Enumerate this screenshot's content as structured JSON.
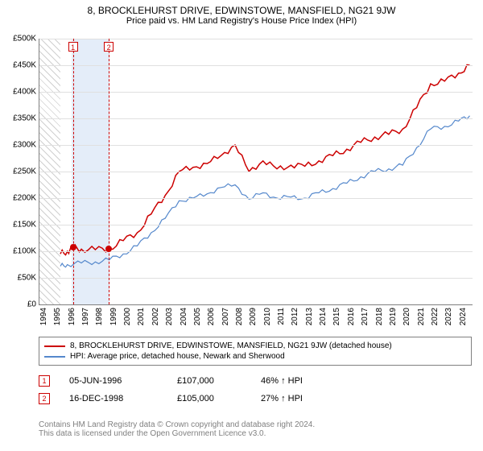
{
  "title": {
    "line1": "8, BROCKLEHURST DRIVE, EDWINSTOWE, MANSFIELD, NG21 9JW",
    "line2": "Price paid vs. HM Land Registry's House Price Index (HPI)",
    "fontsize_main": 12,
    "fontsize_sub": 11,
    "color": "#000000"
  },
  "chart": {
    "type": "line",
    "background_color": "#ffffff",
    "grid_color": "#e0e0e0",
    "axis_color": "#808080",
    "xlim": [
      1994,
      2025
    ],
    "ylim": [
      0,
      500000
    ],
    "ytick_step": 50000,
    "ytick_labels": [
      "£0",
      "£50K",
      "£100K",
      "£150K",
      "£200K",
      "£250K",
      "£300K",
      "£350K",
      "£400K",
      "£450K",
      "£500K"
    ],
    "xtick_labels": [
      "1994",
      "1995",
      "1996",
      "1997",
      "1998",
      "1999",
      "2000",
      "2001",
      "2002",
      "2003",
      "2004",
      "2005",
      "2006",
      "2007",
      "2008",
      "2009",
      "2010",
      "2011",
      "2012",
      "2013",
      "2014",
      "2015",
      "2016",
      "2017",
      "2018",
      "2019",
      "2020",
      "2021",
      "2022",
      "2023",
      "2024"
    ],
    "tick_fontsize": 10,
    "hatch": {
      "start": 1994,
      "end": 1995.5,
      "color": "#d0d0d0"
    },
    "highlight": {
      "start": 1996.3,
      "end": 1999.0,
      "color": "#dde8f7"
    },
    "series": [
      {
        "label": "8, BROCKLEHURST DRIVE, EDWINSTOWE, MANSFIELD, NG21 9JW (detached house)",
        "color": "#cc0000",
        "width": 1.5,
        "points": [
          [
            1995.5,
            95000
          ],
          [
            1996,
            100000
          ],
          [
            1996.4,
            107000
          ],
          [
            1997,
            104000
          ],
          [
            1998,
            103000
          ],
          [
            1999,
            105000
          ],
          [
            2000,
            120000
          ],
          [
            2001,
            135000
          ],
          [
            2002,
            170000
          ],
          [
            2003,
            205000
          ],
          [
            2004,
            250000
          ],
          [
            2005,
            258000
          ],
          [
            2006,
            265000
          ],
          [
            2007,
            280000
          ],
          [
            2008,
            300000
          ],
          [
            2009,
            250000
          ],
          [
            2010,
            270000
          ],
          [
            2011,
            255000
          ],
          [
            2012,
            262000
          ],
          [
            2013,
            260000
          ],
          [
            2014,
            270000
          ],
          [
            2015,
            280000
          ],
          [
            2016,
            292000
          ],
          [
            2017,
            305000
          ],
          [
            2018,
            315000
          ],
          [
            2019,
            320000
          ],
          [
            2020,
            330000
          ],
          [
            2021,
            370000
          ],
          [
            2022,
            415000
          ],
          [
            2023,
            420000
          ],
          [
            2024,
            435000
          ],
          [
            2024.8,
            450000
          ]
        ]
      },
      {
        "label": "HPI: Average price, detached house, Newark and Sherwood",
        "color": "#5588cc",
        "width": 1.2,
        "points": [
          [
            1995.5,
            72000
          ],
          [
            1996,
            75000
          ],
          [
            1997,
            78000
          ],
          [
            1998,
            80000
          ],
          [
            1999,
            84000
          ],
          [
            2000,
            95000
          ],
          [
            2001,
            110000
          ],
          [
            2002,
            135000
          ],
          [
            2003,
            162000
          ],
          [
            2004,
            195000
          ],
          [
            2005,
            200000
          ],
          [
            2006,
            208000
          ],
          [
            2007,
            220000
          ],
          [
            2008,
            225000
          ],
          [
            2009,
            198000
          ],
          [
            2010,
            210000
          ],
          [
            2011,
            200000
          ],
          [
            2012,
            202000
          ],
          [
            2013,
            200000
          ],
          [
            2014,
            210000
          ],
          [
            2015,
            218000
          ],
          [
            2016,
            228000
          ],
          [
            2017,
            240000
          ],
          [
            2018,
            250000
          ],
          [
            2019,
            255000
          ],
          [
            2020,
            262000
          ],
          [
            2021,
            295000
          ],
          [
            2022,
            330000
          ],
          [
            2023,
            335000
          ],
          [
            2024,
            345000
          ],
          [
            2024.8,
            355000
          ]
        ]
      }
    ],
    "sales_markers": [
      {
        "idx": "1",
        "year": 1996.4,
        "price": 107000,
        "date": "05-JUN-1996",
        "price_label": "£107,000",
        "diff": "46% ↑ HPI"
      },
      {
        "idx": "2",
        "year": 1998.96,
        "price": 105000,
        "date": "16-DEC-1998",
        "price_label": "£105,000",
        "diff": "27% ↑ HPI"
      }
    ],
    "marker_dot_color": "#cc0000",
    "marker_box_border": "#cc0000"
  },
  "legend": {
    "fontsize": 10,
    "border_color": "#808080"
  },
  "sales_table": {
    "fontsize": 11
  },
  "footer": {
    "line1": "Contains HM Land Registry data © Crown copyright and database right 2024.",
    "line2": "This data is licensed under the Open Government Licence v3.0.",
    "fontsize": 10,
    "color": "#808080"
  }
}
